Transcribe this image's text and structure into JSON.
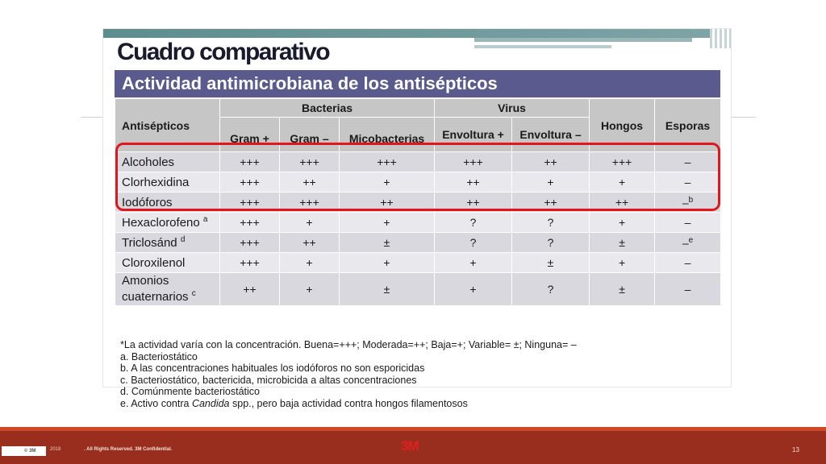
{
  "slide": {
    "title": "Cuadro comparativo",
    "banner": "Actividad antimicrobiana de los antisépticos"
  },
  "table": {
    "header_antisepticos": "Antisépticos",
    "group_bacterias": "Bacterias",
    "group_virus": "Virus",
    "col_hongos": "Hongos",
    "col_esporas": "Esporas",
    "sub_gram_pos": "Gram +",
    "sub_gram_neg": "Gram –",
    "sub_micobacterias": "Micobacterias",
    "sub_envoltura_pos": "Envoltura +",
    "sub_envoltura_neg": "Envoltura –",
    "rows": [
      {
        "name": "Alcoholes",
        "sup": "",
        "values": [
          "+++",
          "+++",
          "+++",
          "+++",
          "++",
          "+++",
          "–"
        ],
        "esporas_sup": ""
      },
      {
        "name": "Clorhexidina",
        "sup": "",
        "values": [
          "+++",
          "++",
          "+",
          "++",
          "+",
          "+",
          "–"
        ],
        "esporas_sup": ""
      },
      {
        "name": "Iodóforos",
        "sup": "",
        "values": [
          "+++",
          "+++",
          "++",
          "++",
          "++",
          "++",
          "–"
        ],
        "esporas_sup": "b"
      },
      {
        "name": "Hexaclorofeno",
        "sup": "a",
        "values": [
          "+++",
          "+",
          "+",
          "?",
          "?",
          "+",
          "–"
        ],
        "esporas_sup": ""
      },
      {
        "name": "Triclosánd",
        "sup": "d",
        "values": [
          "+++",
          "++",
          "±",
          "?",
          "?",
          "±",
          "–"
        ],
        "esporas_sup": "e"
      },
      {
        "name": "Cloroxilenol",
        "sup": "",
        "values": [
          "+++",
          "+",
          "+",
          "+",
          "±",
          "+",
          "–"
        ],
        "esporas_sup": ""
      },
      {
        "name": "Amonios cuaternarios",
        "sup": "c",
        "values": [
          "++",
          "+",
          "±",
          "+",
          "?",
          "±",
          "–"
        ],
        "esporas_sup": ""
      }
    ]
  },
  "footnotes": {
    "legend": "*La actividad varía con la concentración. Buena=+++; Moderada=++; Baja=+; Variable= ±; Ninguna= –",
    "a": "a. Bacteriostático",
    "b": "b. A las concentraciones habituales los iodóforos no son esporicidas",
    "c": "c. Bacteriostático, bactericida, microbicida a altas concentraciones",
    "d": "d. Comúnmente bacteriostático",
    "e_pre": "e. Activo contra ",
    "e_italic": "Candida",
    "e_post": " spp., pero baja actividad contra hongos filamentosos"
  },
  "footer": {
    "copyright": "© 3M",
    "year": "2018",
    "rights": ". All Rights Reserved.   3M Confidential.",
    "logo": "3M",
    "page_number": "13"
  },
  "colors": {
    "banner": "#5a5a8e",
    "highlight": "#e0161c",
    "footer": "#9a2e1e"
  }
}
